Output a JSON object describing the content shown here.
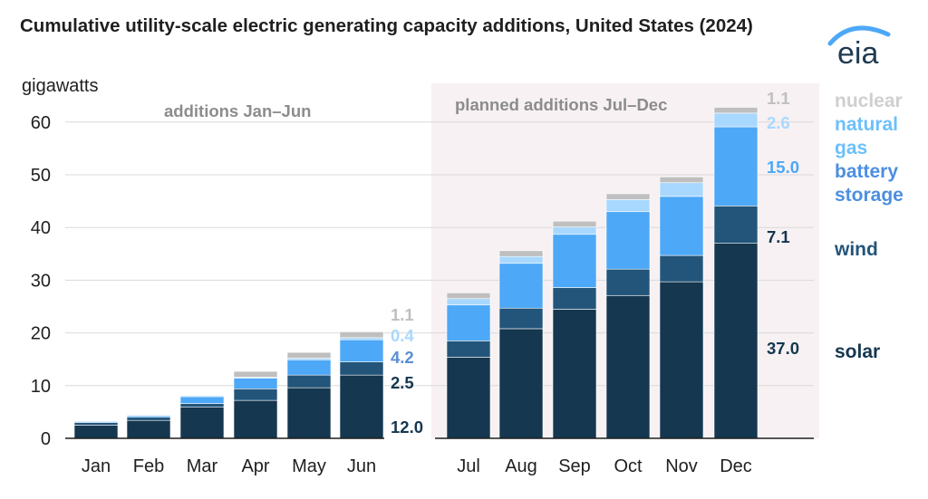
{
  "title": "Cumulative utility-scale electric generating capacity additions, United States (2024)",
  "source_logo": "eia",
  "colors": {
    "solar": "#15374f",
    "wind": "#23557a",
    "battery storage": "#4da8f7",
    "natural gas": "#a8d8ff",
    "nuclear": "#bfbfbf",
    "planned_shading": "#f7f1f3",
    "annotation": "#8c8c8c"
  },
  "annotations": {
    "actual": "additions Jan–Jun",
    "planned": "planned additions Jul–Dec"
  },
  "jun_value_labels": [
    "1.1",
    "0.4",
    "4.2",
    "2.5",
    "12.0"
  ],
  "dec_value_labels": [
    "1.1",
    "2.6",
    "15.0",
    "7.1",
    "37.0"
  ],
  "legend": {
    "nuclear": "nuclear",
    "natural_gas_1": "natural",
    "natural_gas_2": "gas",
    "battery_1": "battery",
    "battery_2": "storage",
    "wind": "wind",
    "solar": "solar"
  },
  "chart_data": {
    "type": "bar",
    "stacked": true,
    "title": "Cumulative utility-scale electric generating capacity additions, United States (2024)",
    "ylabel": "gigawatts",
    "xlabel": "",
    "ylim": [
      0,
      65
    ],
    "yticks": [
      0,
      10,
      20,
      30,
      40,
      50,
      60
    ],
    "grid": true,
    "categories": [
      "Jan",
      "Feb",
      "Mar",
      "Apr",
      "May",
      "Jun",
      "Jul",
      "Aug",
      "Sep",
      "Oct",
      "Nov",
      "Dec"
    ],
    "planned_from": "Jul",
    "series": [
      {
        "name": "solar",
        "values": [
          2.5,
          3.4,
          5.9,
          7.2,
          9.6,
          12.0,
          15.4,
          20.8,
          24.5,
          27.1,
          29.7,
          37.0
        ]
      },
      {
        "name": "wind",
        "values": [
          0.5,
          0.6,
          0.7,
          2.2,
          2.4,
          2.5,
          3.1,
          3.9,
          4.1,
          5.0,
          5.0,
          7.1
        ]
      },
      {
        "name": "battery storage",
        "values": [
          0.2,
          0.3,
          1.3,
          2.0,
          2.9,
          4.2,
          6.8,
          8.5,
          10.1,
          10.9,
          11.2,
          15.0
        ]
      },
      {
        "name": "natural gas",
        "values": [
          0.1,
          0.1,
          0.2,
          0.2,
          0.3,
          0.4,
          1.2,
          1.3,
          1.4,
          2.3,
          2.6,
          2.6
        ]
      },
      {
        "name": "nuclear",
        "values": [
          0.0,
          0.0,
          0.0,
          1.1,
          1.1,
          1.1,
          1.1,
          1.1,
          1.1,
          1.1,
          1.1,
          1.1
        ]
      }
    ],
    "legend_position": "right"
  }
}
